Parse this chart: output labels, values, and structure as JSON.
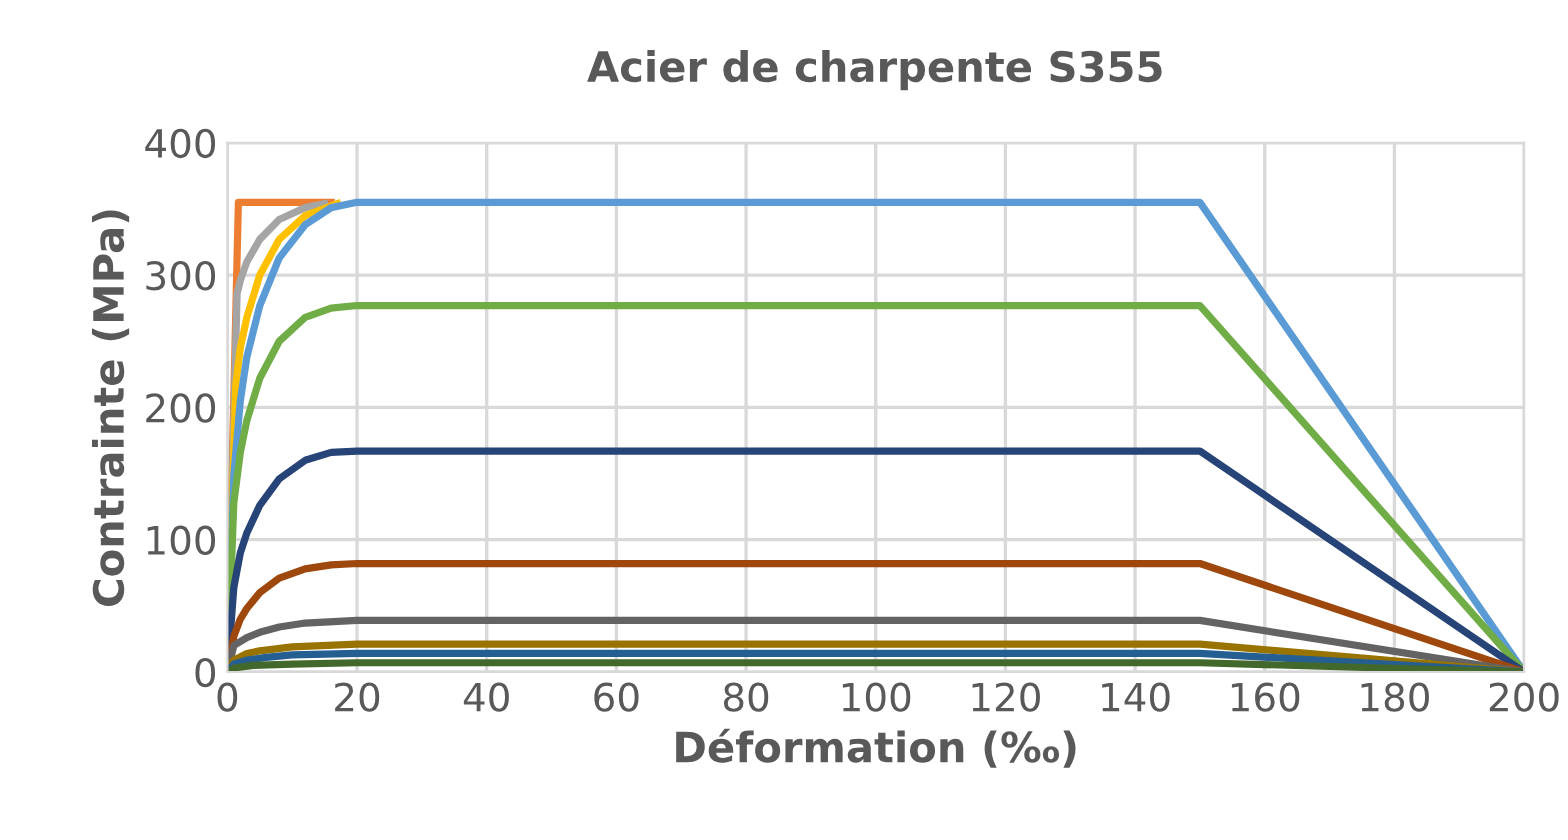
{
  "chart_data": {
    "type": "line",
    "title": "Acier de charpente S355",
    "xlabel": "Déformation (‰)",
    "ylabel": "Contrainte (MPa)",
    "xlim": [
      0,
      200
    ],
    "ylim": [
      0,
      400
    ],
    "xticks": [
      0,
      20,
      40,
      60,
      80,
      100,
      120,
      140,
      160,
      180,
      200
    ],
    "yticks": [
      0,
      100,
      200,
      300,
      400
    ],
    "grid": true,
    "marker": "none",
    "line_style": "solid",
    "series": [
      {
        "color": "#ed7d31",
        "x": [
          0,
          1.7,
          16
        ],
        "values": [
          0,
          355,
          355
        ]
      },
      {
        "color": "#a5a5a5",
        "x": [
          0,
          1.5,
          2,
          3,
          5,
          8,
          12,
          15
        ],
        "values": [
          0,
          286,
          296,
          310,
          327,
          342,
          351,
          354
        ]
      },
      {
        "color": "#ffc000",
        "x": [
          0,
          1.3,
          2,
          3,
          5,
          8,
          12,
          17
        ],
        "values": [
          0,
          217,
          245,
          268,
          300,
          327,
          345,
          354
        ]
      },
      {
        "color": "#5b9bd5",
        "x": [
          0,
          1,
          2,
          3,
          5,
          8,
          12,
          16,
          20,
          150,
          200
        ],
        "values": [
          0,
          149,
          205,
          238,
          277,
          313,
          338,
          351,
          355,
          355,
          0
        ]
      },
      {
        "color": "#70ad47",
        "x": [
          0,
          1,
          2,
          3,
          5,
          8,
          12,
          16,
          20,
          150,
          200
        ],
        "values": [
          0,
          128,
          166,
          190,
          222,
          250,
          268,
          275,
          277,
          277,
          0
        ]
      },
      {
        "color": "#264478",
        "x": [
          0,
          1,
          2,
          3,
          5,
          8,
          12,
          16,
          20,
          150,
          200
        ],
        "values": [
          0,
          64,
          90,
          105,
          126,
          146,
          160,
          166,
          167,
          167,
          0
        ]
      },
      {
        "color": "#9e480e",
        "x": [
          0,
          1,
          2,
          3,
          5,
          8,
          12,
          16,
          20,
          150,
          200
        ],
        "values": [
          0,
          27,
          40,
          48,
          60,
          71,
          78,
          81,
          82,
          82,
          0
        ]
      },
      {
        "color": "#636363",
        "x": [
          0,
          1,
          3,
          5,
          8,
          12,
          20,
          150,
          200
        ],
        "values": [
          0,
          20,
          26,
          30,
          34,
          37,
          39,
          39,
          0
        ]
      },
      {
        "color": "#997300",
        "x": [
          0,
          1,
          3,
          5,
          10,
          20,
          150,
          200
        ],
        "values": [
          0,
          9,
          14,
          16,
          19,
          21,
          21,
          0
        ]
      },
      {
        "color": "#255e91",
        "x": [
          0,
          1,
          3,
          6,
          10,
          20,
          150,
          200
        ],
        "values": [
          0,
          6,
          9,
          11,
          13,
          14,
          14,
          0
        ]
      },
      {
        "color": "#43682b",
        "x": [
          0,
          1,
          4,
          10,
          20,
          150,
          200
        ],
        "values": [
          0,
          3,
          5,
          6,
          7,
          7,
          0
        ]
      }
    ]
  }
}
